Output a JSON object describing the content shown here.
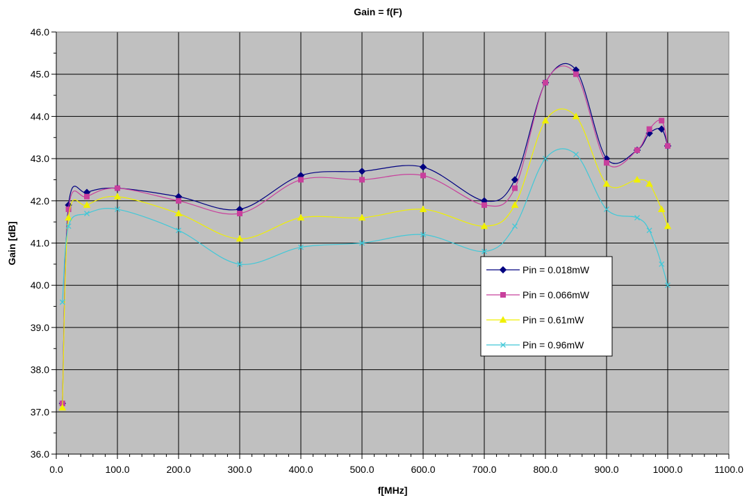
{
  "chart_data": {
    "type": "line",
    "title": "Gain = f(F)",
    "xlabel": "f[MHz]",
    "ylabel": "Gain [dB]",
    "xlim": [
      0,
      1100
    ],
    "ylim": [
      36,
      46
    ],
    "xticks": [
      "0.0",
      "100.0",
      "200.0",
      "300.0",
      "400.0",
      "500.0",
      "600.0",
      "700.0",
      "800.0",
      "900.0",
      "1000.0",
      "1100.0"
    ],
    "yticks": [
      "36.0",
      "37.0",
      "38.0",
      "39.0",
      "40.0",
      "41.0",
      "42.0",
      "43.0",
      "44.0",
      "45.0",
      "46.0"
    ],
    "grid": true,
    "legend_position": "center-right",
    "plot_background": "#c0c0c0",
    "series": [
      {
        "name": "Pin = 0.018mW",
        "color": "#000080",
        "marker": "diamond",
        "x": [
          10,
          20,
          50,
          100,
          200,
          300,
          400,
          500,
          600,
          700,
          750,
          800,
          850,
          900,
          950,
          970,
          990,
          1000
        ],
        "y": [
          37.2,
          41.9,
          42.2,
          42.3,
          42.1,
          41.8,
          42.6,
          42.7,
          42.8,
          42.0,
          42.5,
          44.8,
          45.1,
          43.0,
          43.2,
          43.6,
          43.7,
          43.3
        ]
      },
      {
        "name": "Pin = 0.066mW",
        "color": "#c8409c",
        "marker": "square",
        "x": [
          10,
          20,
          50,
          100,
          200,
          300,
          400,
          500,
          600,
          700,
          750,
          800,
          850,
          900,
          950,
          970,
          990,
          1000
        ],
        "y": [
          37.2,
          41.8,
          42.1,
          42.3,
          42.0,
          41.7,
          42.5,
          42.5,
          42.6,
          41.9,
          42.3,
          44.8,
          45.0,
          42.9,
          43.2,
          43.7,
          43.9,
          43.3
        ]
      },
      {
        "name": "Pin = 0.61mW",
        "color": "#f0f000",
        "marker": "triangle",
        "x": [
          10,
          20,
          50,
          100,
          200,
          300,
          400,
          500,
          600,
          700,
          750,
          800,
          850,
          900,
          950,
          970,
          990,
          1000
        ],
        "y": [
          37.1,
          41.6,
          41.9,
          42.1,
          41.7,
          41.1,
          41.6,
          41.6,
          41.8,
          41.4,
          41.9,
          43.9,
          44.0,
          42.4,
          42.5,
          42.4,
          41.8,
          41.4
        ]
      },
      {
        "name": "Pin = 0.96mW",
        "color": "#40c8d8",
        "marker": "x",
        "x": [
          10,
          20,
          50,
          100,
          200,
          300,
          400,
          500,
          600,
          700,
          750,
          800,
          850,
          900,
          950,
          970,
          990,
          1000
        ],
        "y": [
          39.6,
          41.4,
          41.7,
          41.8,
          41.3,
          40.5,
          40.9,
          41.0,
          41.2,
          40.8,
          41.4,
          43.0,
          43.1,
          41.8,
          41.6,
          41.3,
          40.5,
          40.0
        ]
      }
    ]
  }
}
